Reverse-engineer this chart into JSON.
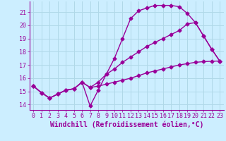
{
  "xlabel": "Windchill (Refroidissement éolien,°C)",
  "bg_color": "#cceeff",
  "grid_color": "#b0d8e8",
  "line_color": "#990099",
  "xlim": [
    -0.5,
    23.5
  ],
  "ylim": [
    13.6,
    21.8
  ],
  "yticks": [
    14,
    15,
    16,
    17,
    18,
    19,
    20,
    21
  ],
  "xticks": [
    0,
    1,
    2,
    3,
    4,
    5,
    6,
    7,
    8,
    9,
    10,
    11,
    12,
    13,
    14,
    15,
    16,
    17,
    18,
    19,
    20,
    21,
    22,
    23
  ],
  "line1_x": [
    0,
    1,
    2,
    3,
    4,
    5,
    6,
    7,
    8,
    9,
    10,
    11,
    12,
    13,
    14,
    15,
    16,
    17,
    18,
    19,
    20,
    21,
    22,
    23
  ],
  "line1_y": [
    15.4,
    14.9,
    14.5,
    14.8,
    15.1,
    15.2,
    15.7,
    13.9,
    15.1,
    16.3,
    17.5,
    19.0,
    20.5,
    21.1,
    21.3,
    21.5,
    21.5,
    21.5,
    21.4,
    20.9,
    20.2,
    19.2,
    18.2,
    17.3
  ],
  "line2_x": [
    0,
    1,
    2,
    3,
    4,
    5,
    6,
    7,
    8,
    9,
    10,
    11,
    12,
    13,
    14,
    15,
    16,
    17,
    18,
    19,
    20,
    21,
    22,
    23
  ],
  "line2_y": [
    15.4,
    14.9,
    14.5,
    14.8,
    15.1,
    15.2,
    15.7,
    15.3,
    15.7,
    16.3,
    16.7,
    17.2,
    17.6,
    18.0,
    18.4,
    18.7,
    19.0,
    19.3,
    19.6,
    20.1,
    20.2,
    19.2,
    18.2,
    17.3
  ],
  "line3_x": [
    0,
    1,
    2,
    3,
    4,
    5,
    6,
    7,
    8,
    9,
    10,
    11,
    12,
    13,
    14,
    15,
    16,
    17,
    18,
    19,
    20,
    21,
    22,
    23
  ],
  "line3_y": [
    15.4,
    14.9,
    14.5,
    14.8,
    15.1,
    15.2,
    15.7,
    15.3,
    15.4,
    15.55,
    15.7,
    15.85,
    16.0,
    16.2,
    16.4,
    16.55,
    16.7,
    16.85,
    17.0,
    17.1,
    17.2,
    17.25,
    17.28,
    17.3
  ],
  "marker": "D",
  "markersize": 2.5,
  "linewidth": 1.0,
  "xlabel_fontsize": 7,
  "tick_fontsize": 6
}
